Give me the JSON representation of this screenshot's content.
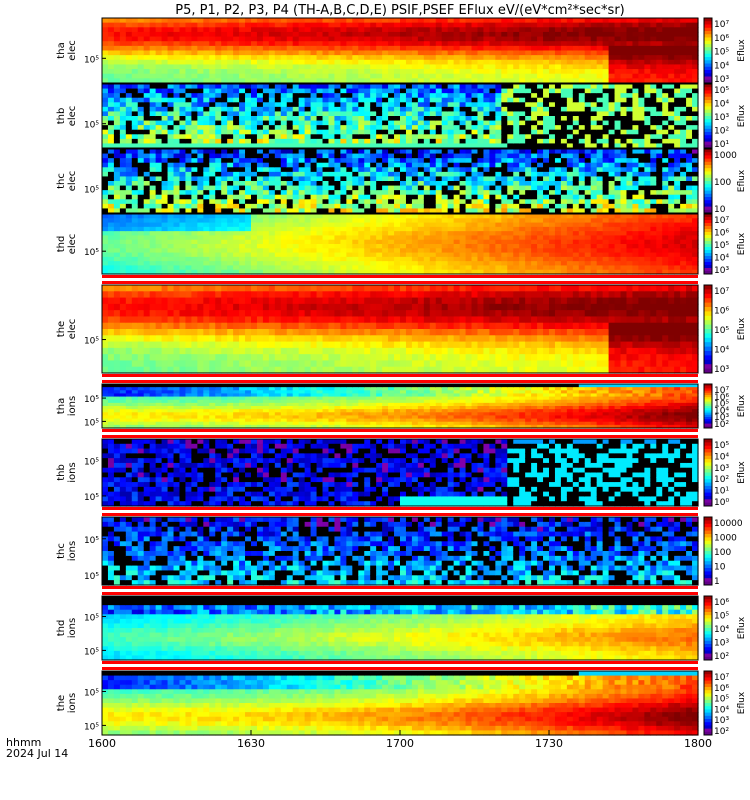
{
  "title": "P5, P1, P2, P3, P4 (TH-A,B,C,D,E) PSIF,PSEF EFlux eV/(eV*cm²*sec*sr)",
  "footer": {
    "time_label": "hhmm",
    "date_label": "2024 Jul 14"
  },
  "colors": {
    "background": "#ffffff",
    "axis": "#000000",
    "cutoff_stripe": "#ff0000"
  },
  "chart_data": {
    "type": "heatmap",
    "x_tick_labels": [
      "1600",
      "1630",
      "1700",
      "1730",
      "1800"
    ],
    "panels": [
      {
        "label1": "tha",
        "label2": "elec",
        "y_ticks": [
          "10⁵"
        ],
        "cbar_ticks": [
          "10⁷",
          "10⁶",
          "10⁵",
          "10⁴",
          "10³"
        ],
        "cbar_label": "Eflux",
        "pattern": "elec_hot",
        "cutoff": false
      },
      {
        "label1": "thb",
        "label2": "elec",
        "y_ticks": [
          "10⁵"
        ],
        "cbar_ticks": [
          "10⁵",
          "10⁴",
          "10³",
          "10²",
          "10¹"
        ],
        "cbar_label": "Eflux",
        "pattern": "noise_b",
        "cutoff": false
      },
      {
        "label1": "thc",
        "label2": "elec",
        "y_ticks": [
          "10⁵"
        ],
        "cbar_ticks": [
          "1000",
          "100",
          "10"
        ],
        "cbar_label": "Eflux",
        "pattern": "noise_c",
        "cutoff": false
      },
      {
        "label1": "thd",
        "label2": "elec",
        "y_ticks": [
          "10⁵"
        ],
        "cbar_ticks": [
          "10⁷",
          "10⁶",
          "10⁵",
          "10⁴",
          "10³"
        ],
        "cbar_label": "Eflux",
        "pattern": "elec_warm",
        "cutoff": false
      },
      {
        "label1": "the",
        "label2": "elec",
        "y_ticks": [
          "10⁵"
        ],
        "cbar_ticks": [
          "10⁷",
          "10⁶",
          "10⁵",
          "10⁴",
          "10³"
        ],
        "cbar_label": "Eflux",
        "pattern": "elec_hot",
        "cutoff": true
      },
      {
        "label1": "tha",
        "label2": "ions",
        "y_ticks": [
          "10⁵",
          "10⁵"
        ],
        "cbar_ticks": [
          "10⁷",
          "10⁶",
          "10⁵",
          "10⁴",
          "10³",
          "10²"
        ],
        "cbar_label": "Eflux",
        "pattern": "ion",
        "cutoff": true
      },
      {
        "label1": "thb",
        "label2": "ions",
        "y_ticks": [
          "10⁵",
          "10⁵"
        ],
        "cbar_ticks": [
          "10⁵",
          "10⁴",
          "10³",
          "10²",
          "10¹",
          "10⁰"
        ],
        "cbar_label": "Eflux",
        "pattern": "noise_ib",
        "cutoff": true
      },
      {
        "label1": "thc",
        "label2": "ions",
        "y_ticks": [
          "10⁵",
          "10⁵"
        ],
        "cbar_ticks": [
          "10000",
          "1000",
          "100",
          "10",
          "1"
        ],
        "cbar_label": "",
        "pattern": "noise_ic",
        "cutoff": true
      },
      {
        "label1": "thd",
        "label2": "ions",
        "y_ticks": [
          "10⁵",
          "10⁵"
        ],
        "cbar_ticks": [
          "10⁶",
          "10⁵",
          "10⁴",
          "10³",
          "10²"
        ],
        "cbar_label": "Eflux",
        "pattern": "ion_d",
        "cutoff": true
      },
      {
        "label1": "the",
        "label2": "ions",
        "y_ticks": [
          "10⁵",
          "10⁵"
        ],
        "cbar_ticks": [
          "10⁷",
          "10⁶",
          "10⁵",
          "10⁴",
          "10³",
          "10²"
        ],
        "cbar_label": "Eflux",
        "pattern": "ion",
        "cutoff": true
      }
    ]
  }
}
